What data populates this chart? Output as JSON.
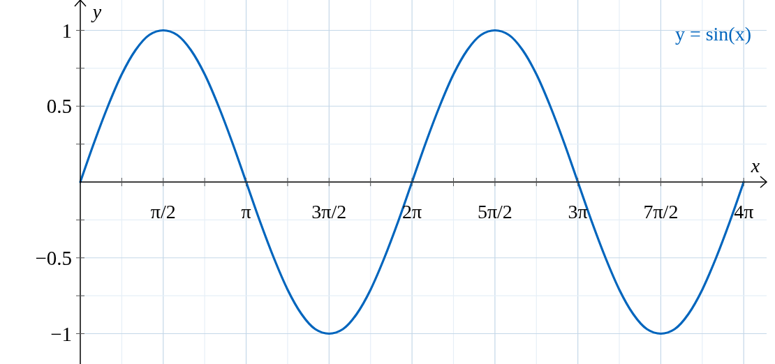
{
  "chart_data": {
    "type": "line",
    "xlabel": "x",
    "ylabel": "y",
    "x": [
      0,
      0.2618,
      0.5236,
      0.7854,
      1.0472,
      1.309,
      1.5708,
      1.8326,
      2.0944,
      2.3562,
      2.618,
      2.8798,
      3.1416,
      3.4034,
      3.6652,
      3.927,
      4.1888,
      4.4506,
      4.7124,
      4.9742,
      5.236,
      5.4978,
      5.7596,
      6.0214,
      6.2832,
      6.545,
      6.8068,
      7.0686,
      7.3304,
      7.5922,
      7.854,
      8.1158,
      8.3776,
      8.6394,
      8.9012,
      9.163,
      9.4248,
      9.6866,
      9.9484,
      10.2102,
      10.472,
      10.7338,
      10.9956,
      11.2574,
      11.5192,
      11.781,
      12.0428,
      12.3046,
      12.5664
    ],
    "series": [
      {
        "name": "y = sin(x)",
        "color": "#0065bd",
        "values": [
          0,
          0.26,
          0.5,
          0.71,
          0.87,
          0.97,
          1,
          0.97,
          0.87,
          0.71,
          0.5,
          0.26,
          0,
          -0.26,
          -0.5,
          -0.71,
          -0.87,
          -0.97,
          -1,
          -0.97,
          -0.87,
          -0.71,
          -0.5,
          -0.26,
          0,
          0.26,
          0.5,
          0.71,
          0.87,
          0.97,
          1,
          0.97,
          0.87,
          0.71,
          0.5,
          0.26,
          0,
          -0.26,
          -0.5,
          -0.71,
          -0.87,
          -0.97,
          -1,
          -0.97,
          -0.87,
          -0.71,
          -0.5,
          -0.26,
          0
        ]
      }
    ],
    "xlim": [
      0,
      13.0
    ],
    "ylim": [
      -1.2,
      1.2
    ],
    "xticks": [
      {
        "value": 0.7854,
        "label": null
      },
      {
        "value": 1.5708,
        "label": "π/2"
      },
      {
        "value": 2.3562,
        "label": null
      },
      {
        "value": 3.1416,
        "label": "π"
      },
      {
        "value": 3.927,
        "label": null
      },
      {
        "value": 4.7124,
        "label": "3π/2"
      },
      {
        "value": 5.4978,
        "label": null
      },
      {
        "value": 6.2832,
        "label": "2π"
      },
      {
        "value": 7.0686,
        "label": null
      },
      {
        "value": 7.854,
        "label": "5π/2"
      },
      {
        "value": 8.6394,
        "label": null
      },
      {
        "value": 9.4248,
        "label": "3π"
      },
      {
        "value": 10.2102,
        "label": null
      },
      {
        "value": 10.9956,
        "label": "7π/2"
      },
      {
        "value": 11.781,
        "label": null
      },
      {
        "value": 12.5664,
        "label": "4π"
      }
    ],
    "yticks": [
      -1,
      {
        "value": -0.75,
        "label": null
      },
      -0.5,
      {
        "value": -0.25,
        "label": null
      },
      {
        "value": 0.25,
        "label": null
      },
      0.5,
      {
        "value": 0.75,
        "label": null
      },
      1
    ],
    "grid": true,
    "legend": "top right",
    "marker": "none",
    "line_style": "solid"
  }
}
